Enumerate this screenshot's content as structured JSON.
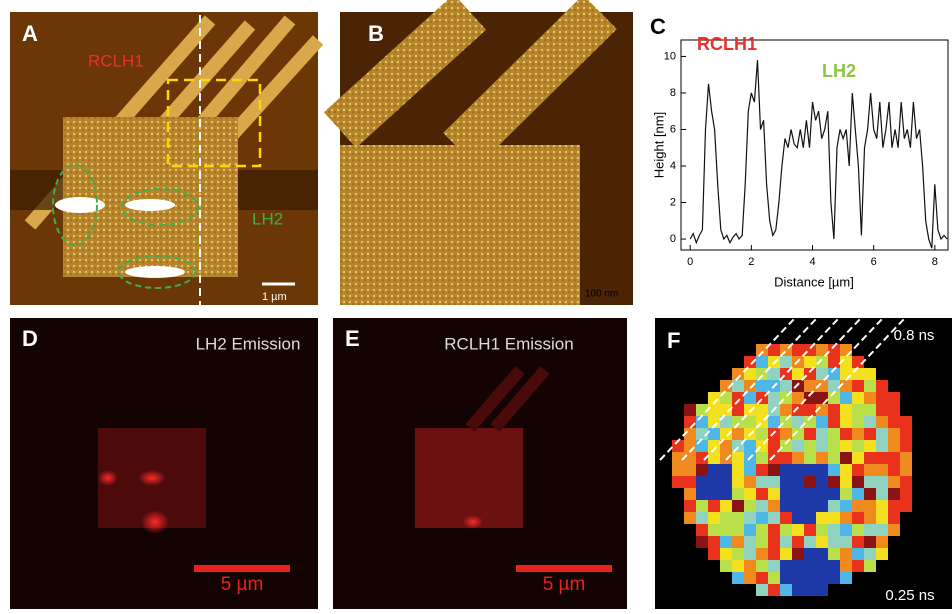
{
  "panels": {
    "a": {
      "letter": "A",
      "label_rclh1": "RCLH1",
      "label_lh2": "LH2",
      "scale": "1 µm"
    },
    "b": {
      "letter": "B",
      "scale": "100 nm"
    },
    "c": {
      "letter": "C"
    },
    "d": {
      "letter": "D",
      "title": "LH2 Emission",
      "scale": "5 µm"
    },
    "e": {
      "letter": "E",
      "title": "RCLH1 Emission",
      "scale": "5 µm"
    },
    "f": {
      "letter": "F",
      "max_label": "0.8 ns",
      "min_label": "0.25 ns"
    }
  },
  "chart_data": {
    "type": "line",
    "x_label": "Distance [µm]",
    "y_label": "Height [nm]",
    "annotations": [
      {
        "text": "RCLH1",
        "color": "#e8322b"
      },
      {
        "text": "LH2",
        "color": "#8cc63f"
      }
    ],
    "color": "#111111",
    "xlim": [
      -0.3,
      8.43
    ],
    "ylim": [
      -0.6,
      10.9
    ],
    "xticks": [
      0,
      2,
      4,
      6,
      8
    ],
    "yticks": [
      0,
      2,
      4,
      6,
      8,
      10
    ],
    "x": [
      0,
      0.1,
      0.2,
      0.3,
      0.4,
      0.5,
      0.6,
      0.7,
      0.8,
      0.9,
      1.0,
      1.1,
      1.2,
      1.3,
      1.4,
      1.5,
      1.6,
      1.7,
      1.8,
      1.9,
      2.0,
      2.1,
      2.2,
      2.3,
      2.4,
      2.5,
      2.6,
      2.7,
      2.8,
      2.9,
      3.0,
      3.1,
      3.2,
      3.3,
      3.4,
      3.5,
      3.6,
      3.7,
      3.8,
      3.9,
      4.0,
      4.1,
      4.2,
      4.3,
      4.4,
      4.5,
      4.6,
      4.7,
      4.8,
      4.9,
      5.0,
      5.1,
      5.2,
      5.3,
      5.4,
      5.5,
      5.6,
      5.7,
      5.8,
      5.9,
      6.0,
      6.1,
      6.2,
      6.3,
      6.4,
      6.5,
      6.6,
      6.7,
      6.8,
      6.9,
      7.0,
      7.1,
      7.2,
      7.3,
      7.4,
      7.5,
      7.6,
      7.7,
      7.8,
      7.9,
      8.0,
      8.1,
      8.2,
      8.3,
      8.4
    ],
    "values": [
      0,
      0.3,
      -0.2,
      0.2,
      0.5,
      6,
      8.5,
      7,
      6,
      3,
      0.5,
      0,
      0.2,
      -0.2,
      0.1,
      0.3,
      0,
      0.2,
      3,
      7,
      8,
      7.5,
      9.8,
      6,
      6.5,
      3,
      1,
      0.2,
      0.5,
      2,
      4,
      5.5,
      5,
      6,
      5.2,
      5,
      6,
      5,
      6.5,
      5,
      7.5,
      6.5,
      7,
      5.5,
      6,
      7,
      2,
      0,
      5,
      6,
      5.5,
      6,
      4,
      8,
      6,
      4,
      0.2,
      5,
      6,
      8,
      6,
      5.5,
      7.5,
      5,
      6,
      7.5,
      5,
      6,
      5,
      7.5,
      5.5,
      6,
      5,
      7.5,
      5.5,
      6,
      4,
      1,
      0,
      -0.5,
      3,
      0.5,
      0,
      0.2,
      0
    ]
  }
}
